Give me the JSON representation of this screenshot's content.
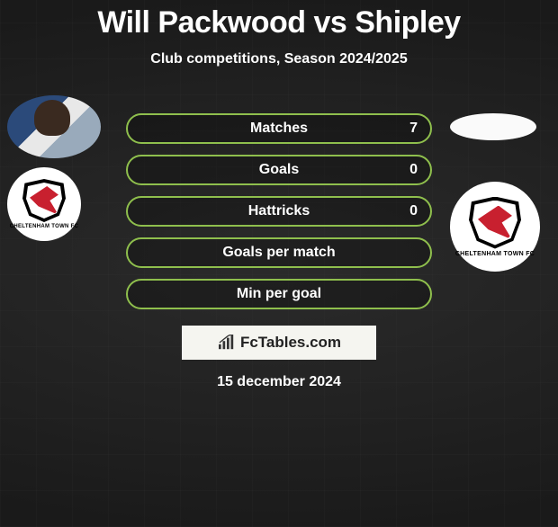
{
  "header": {
    "title": "Will Packwood vs Shipley",
    "title_color": "#ffffff",
    "subtitle": "Club competitions, Season 2024/2025"
  },
  "players": {
    "left": {
      "name": "Will Packwood",
      "club_label": "CHELTENHAM TOWN FC"
    },
    "right": {
      "name": "Shipley",
      "club_label": "CHELTENHAM TOWN FC"
    }
  },
  "stats": {
    "border_color": "#8fbf4d",
    "rows": [
      {
        "label": "Matches",
        "value_right": "7"
      },
      {
        "label": "Goals",
        "value_right": "0"
      },
      {
        "label": "Hattricks",
        "value_right": "0"
      },
      {
        "label": "Goals per match",
        "value_right": ""
      },
      {
        "label": "Min per goal",
        "value_right": ""
      }
    ]
  },
  "branding": {
    "text": "FcTables.com",
    "background": "#f5f5f0"
  },
  "date_text": "15 december 2024",
  "colors": {
    "background": "#1a1a1a",
    "text": "#ffffff",
    "club_red": "#c8202f"
  }
}
